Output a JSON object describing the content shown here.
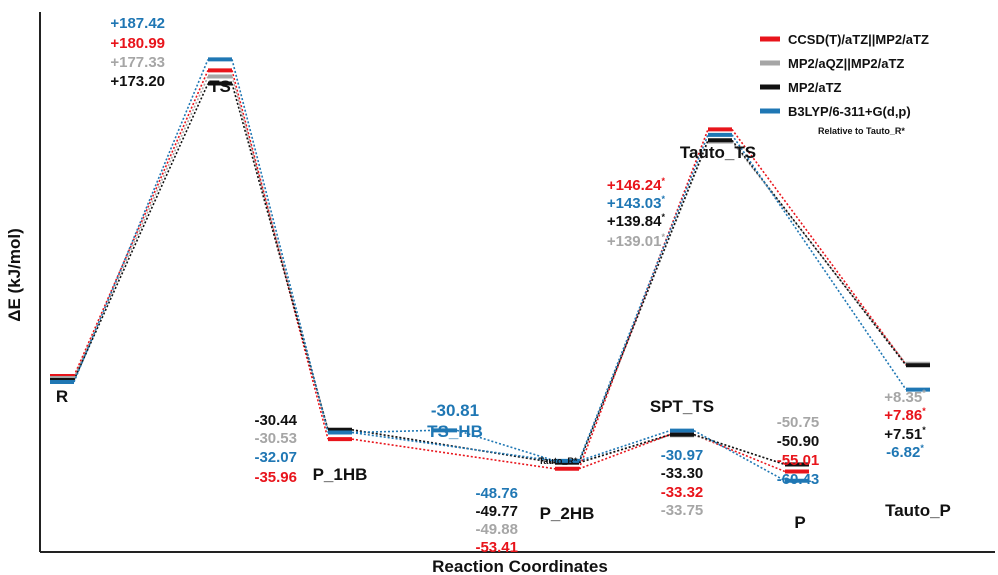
{
  "chart_data": {
    "type": "line",
    "xlabel": "Reaction Coordinates",
    "ylabel": "ΔE (kJ/mol)",
    "colors": {
      "CCSD(T)/aTZ||MP2/aTZ": "#e8141b",
      "MP2/aQZ||MP2/aTZ": "#a6a6a6",
      "MP2/aTZ": "#111111",
      "B3LYP/6-311+G(d,p)": "#1f77b4"
    },
    "legend": {
      "placement": "top-right",
      "entries": [
        "CCSD(T)/aTZ||MP2/aTZ",
        "MP2/aQZ||MP2/aTZ",
        "MP2/aTZ",
        "B3LYP/6-311+G(d,p)"
      ],
      "note": "Relative to Tauto_R*"
    },
    "states": [
      "R",
      "TS",
      "P_1HB",
      "TS_HB",
      "P_2HB",
      "SPT_TS",
      "P",
      "Tauto_TS",
      "Tauto_P"
    ],
    "state_label_extra": "Tauto_R*",
    "series": [
      {
        "name": "CCSD(T)/aTZ||MP2/aTZ",
        "values": [
          0,
          180.99,
          -35.96,
          null,
          -53.41,
          -33.32,
          -55.01,
          146.24,
          7.86
        ],
        "labels": [
          "",
          "+180.99",
          "-35.96",
          "",
          "-53.41",
          "-33.32",
          "-55.01",
          "+146.24",
          "+7.86"
        ]
      },
      {
        "name": "MP2/aQZ||MP2/aTZ",
        "values": [
          0,
          177.33,
          -30.53,
          null,
          -49.88,
          -33.75,
          -50.75,
          139.01,
          8.35
        ],
        "labels": [
          "",
          "+177.33",
          "-30.53",
          "",
          "-49.88",
          "-33.75",
          "-50.75",
          "+139.01",
          "+8.35"
        ]
      },
      {
        "name": "MP2/aTZ",
        "values": [
          0,
          173.2,
          -30.44,
          null,
          -49.77,
          -33.3,
          -50.9,
          139.84,
          7.51
        ],
        "labels": [
          "",
          "+173.20",
          "-30.44",
          "",
          "-49.77",
          "-33.30",
          "-50.90",
          "+139.84",
          "+7.51"
        ]
      },
      {
        "name": "B3LYP/6-311+G(d,p)",
        "values": [
          0,
          187.42,
          -32.07,
          -30.81,
          -48.76,
          -30.97,
          -60.43,
          143.03,
          -6.82
        ],
        "labels": [
          "",
          "+187.42",
          "-32.07",
          "-30.81",
          "-48.76",
          "-30.97",
          "-60.43",
          "+143.03",
          "-6.82"
        ]
      }
    ]
  }
}
